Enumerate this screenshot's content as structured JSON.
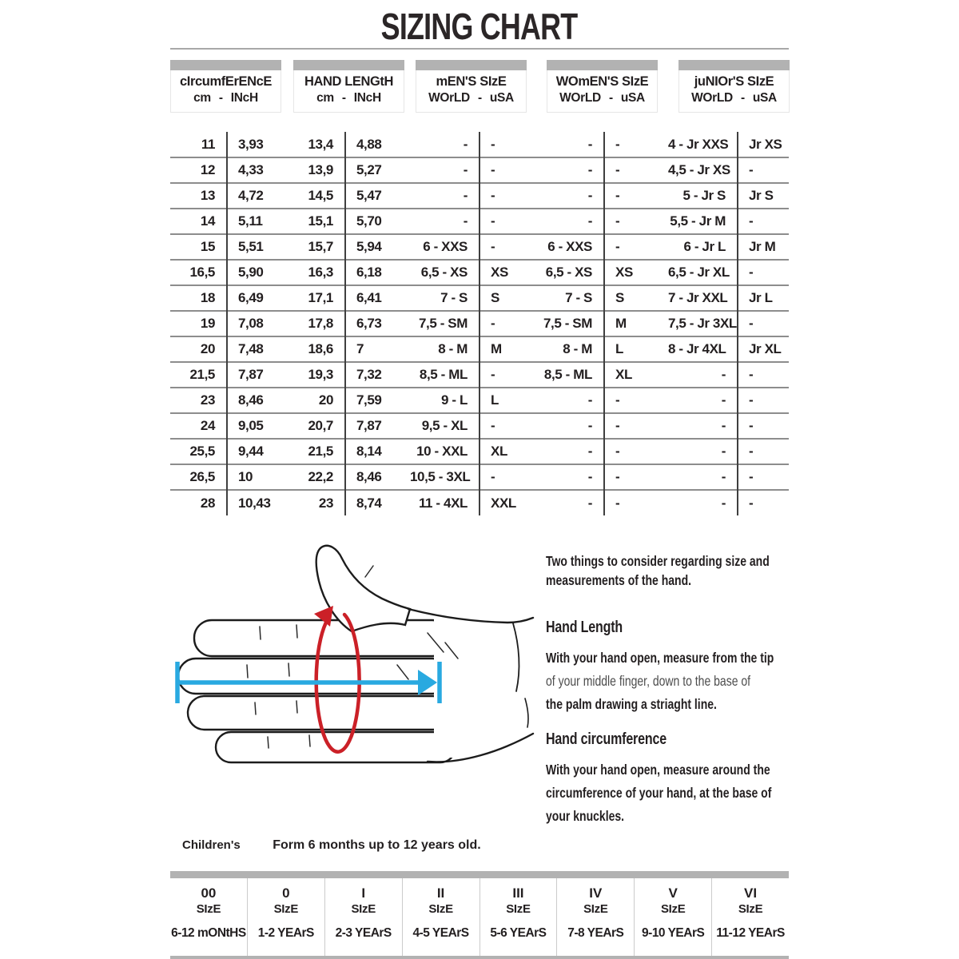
{
  "title": "SIZING CHART",
  "colors": {
    "arrow_blue": "#29a9e0",
    "arrow_red": "#cb2027",
    "header_bar_gray": "#b2b2b2",
    "row_line_gray": "#8d8d8d"
  },
  "size_table": {
    "groups": [
      {
        "title": "cIrcumfErENcE",
        "subtitle": "cm - INcH"
      },
      {
        "title": "HAND LENGtH",
        "subtitle": "cm - INcH"
      },
      {
        "title": "mEN'S SIzE",
        "subtitle": "WOrLD - uSA"
      },
      {
        "title": "WOmEN'S SIzE",
        "subtitle": "WOrLD - uSA"
      },
      {
        "title": "juNIOr'S SIzE",
        "subtitle": "WOrLD - uSA"
      }
    ],
    "rows": [
      [
        "11",
        "3,93",
        "13,4",
        "4,88",
        "-",
        "-",
        "-",
        "-",
        "4 - Jr XXS",
        "Jr XS"
      ],
      [
        "12",
        "4,33",
        "13,9",
        "5,27",
        "-",
        "-",
        "-",
        "-",
        "4,5 - Jr XS",
        "-"
      ],
      [
        "13",
        "4,72",
        "14,5",
        "5,47",
        "-",
        "-",
        "-",
        "-",
        "5 - Jr S",
        "Jr S"
      ],
      [
        "14",
        "5,11",
        "15,1",
        "5,70",
        "-",
        "-",
        "-",
        "-",
        "5,5 - Jr M",
        "-"
      ],
      [
        "15",
        "5,51",
        "15,7",
        "5,94",
        "6 - XXS",
        "-",
        "6 - XXS",
        "-",
        "6 - Jr L",
        "Jr M"
      ],
      [
        "16,5",
        "5,90",
        "16,3",
        "6,18",
        "6,5 - XS",
        "XS",
        "6,5 - XS",
        "XS",
        "6,5 - Jr XL",
        "-"
      ],
      [
        "18",
        "6,49",
        "17,1",
        "6,41",
        "7 - S",
        "S",
        "7 - S",
        "S",
        "7 - Jr XXL",
        "Jr L"
      ],
      [
        "19",
        "7,08",
        "17,8",
        "6,73",
        "7,5 - SM",
        "-",
        "7,5 - SM",
        "M",
        "7,5 - Jr 3XL",
        "-"
      ],
      [
        "20",
        "7,48",
        "18,6",
        "7",
        "8 - M",
        "M",
        "8 - M",
        "L",
        "8 - Jr 4XL",
        "Jr XL"
      ],
      [
        "21,5",
        "7,87",
        "19,3",
        "7,32",
        "8,5 - ML",
        "-",
        "8,5 - ML",
        "XL",
        "-",
        "-"
      ],
      [
        "23",
        "8,46",
        "20",
        "7,59",
        "9 - L",
        "L",
        "-",
        "-",
        "-",
        "-"
      ],
      [
        "24",
        "9,05",
        "20,7",
        "7,87",
        "9,5 - XL",
        "-",
        "-",
        "-",
        "-",
        "-"
      ],
      [
        "25,5",
        "9,44",
        "21,5",
        "8,14",
        "10 - XXL",
        "XL",
        "-",
        "-",
        "-",
        "-"
      ],
      [
        "26,5",
        "10",
        "22,2",
        "8,46",
        "10,5 - 3XL",
        "-",
        "-",
        "-",
        "-",
        "-"
      ],
      [
        "28",
        "10,43",
        "23",
        "8,74",
        "11 - 4XL",
        "XXL",
        "-",
        "-",
        "-",
        "-"
      ]
    ]
  },
  "instructions": {
    "intro_line1": "Two things to consider regarding size and",
    "intro_line2": "measurements of the hand.",
    "hand_length_title": "Hand Length",
    "hand_length_line1": "With your hand open, measure from the tip",
    "hand_length_line2": "of your middle finger, down to the base of",
    "hand_length_line3": "the palm drawing a striaght line.",
    "hand_circumference_title": "Hand circumference",
    "hand_circumference_line1": "With your hand open, measure around the",
    "hand_circumference_line2": "circumference of your hand, at the base of",
    "hand_circumference_line3": "your knuckles."
  },
  "children": {
    "label": "Children's",
    "note": "Form 6 months up to 12 years old.",
    "columns": [
      {
        "size": "00",
        "size_word": "SIzE",
        "age": "6-12 mONtHS"
      },
      {
        "size": "0",
        "size_word": "SIzE",
        "age": "1-2 YEArS"
      },
      {
        "size": "I",
        "size_word": "SIzE",
        "age": "2-3 YEArS"
      },
      {
        "size": "II",
        "size_word": "SIzE",
        "age": "4-5 YEArS"
      },
      {
        "size": "III",
        "size_word": "SIzE",
        "age": "5-6 YEArS"
      },
      {
        "size": "IV",
        "size_word": "SIzE",
        "age": "7-8 YEArS"
      },
      {
        "size": "V",
        "size_word": "SIzE",
        "age": "9-10 YEArS"
      },
      {
        "size": "VI",
        "size_word": "SIzE",
        "age": "11-12 YEArS"
      }
    ]
  },
  "illustration": {
    "hand_icon": "open-hand-line-art",
    "hand_length_arrow_icon": "blue-horizontal-measure-arrow",
    "circumference_arrow_icon": "red-ellipse-measure-arrow"
  }
}
